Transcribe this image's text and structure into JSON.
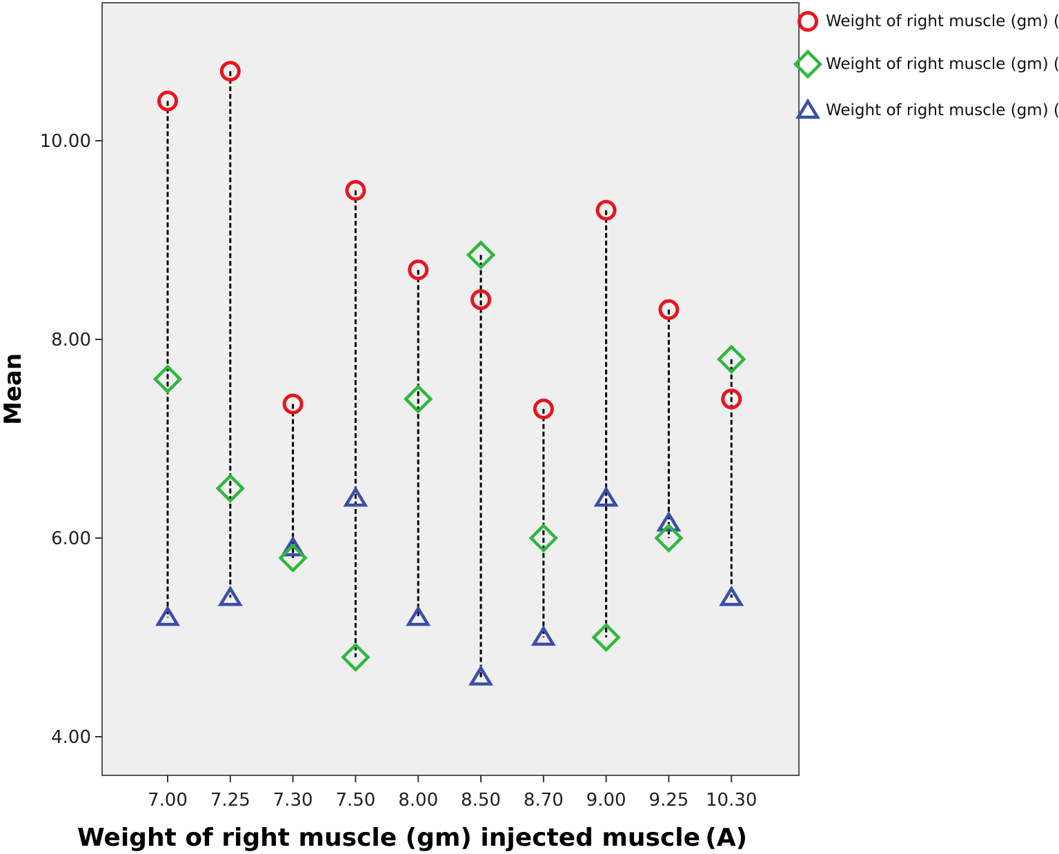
{
  "chart_data": {
    "type": "scatter",
    "xlabel": "Weight of right muscle (gm) injected muscle (A)",
    "ylabel": "Mean",
    "categories": [
      "7.00",
      "7.25",
      "7.30",
      "7.50",
      "8.00",
      "8.50",
      "8.70",
      "9.00",
      "9.25",
      "10.30"
    ],
    "y_ticks": [
      "4.00",
      "6.00",
      "8.00",
      "10.00"
    ],
    "ylim": [
      3.6,
      11.4
    ],
    "grid": false,
    "legend_position": "top-right, outside plot",
    "drop_lines": "dashed vertical line from max to min of each category",
    "series": [
      {
        "name": "Weight of right muscle (gm) (B)",
        "marker": "circle",
        "color": "#e8141c",
        "values": [
          10.4,
          10.7,
          7.35,
          9.5,
          8.7,
          8.4,
          7.3,
          9.3,
          8.3,
          7.4
        ]
      },
      {
        "name": "Weight of right muscle (gm) (C)",
        "marker": "diamond",
        "color": "#2db83d",
        "values": [
          7.6,
          6.5,
          5.8,
          4.8,
          7.4,
          8.85,
          6.0,
          5.0,
          6.0,
          7.8
        ]
      },
      {
        "name": "Weight of right muscle (gm) (D)",
        "marker": "triangle",
        "color": "#3a4fa8",
        "values": [
          5.2,
          5.4,
          5.9,
          6.4,
          5.2,
          4.6,
          5.0,
          6.4,
          6.15,
          5.4
        ]
      }
    ]
  }
}
